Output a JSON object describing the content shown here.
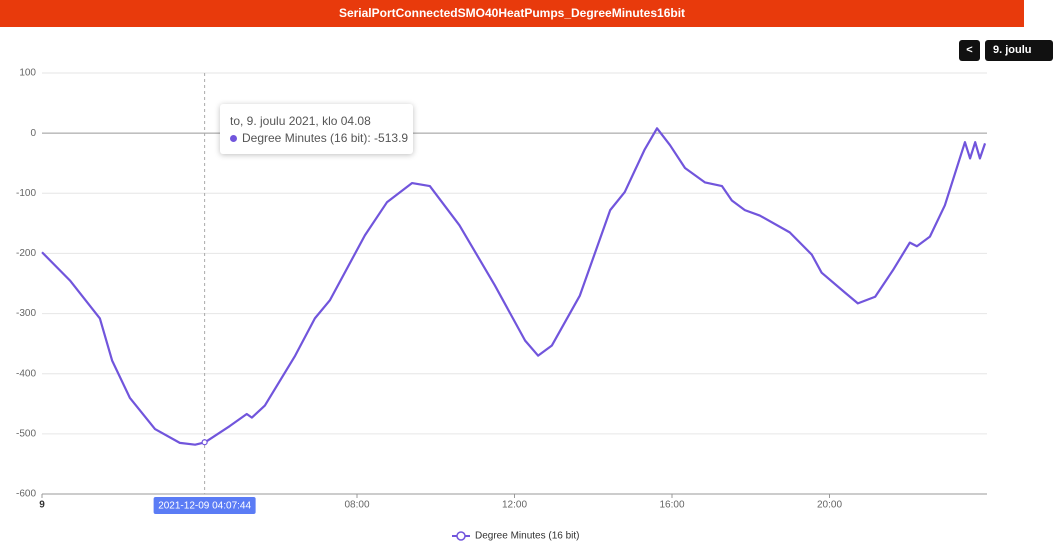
{
  "header": {
    "title": "SerialPortConnectedSMO40HeatPumps_DegreeMinutes16bit"
  },
  "controls": {
    "back": "<",
    "date": "9. joulu"
  },
  "chart_data": {
    "type": "line",
    "x": [
      0,
      0.71,
      1.47,
      1.78,
      2.23,
      2.87,
      3.5,
      3.89,
      4.14,
      4.77,
      5.2,
      5.33,
      5.66,
      6.43,
      6.93,
      7.31,
      8.2,
      8.76,
      9.4,
      9.85,
      10.6,
      11.5,
      12.27,
      12.6,
      12.95,
      13.66,
      14.43,
      14.8,
      15.3,
      15.62,
      15.95,
      16.33,
      16.84,
      17.27,
      17.52,
      17.85,
      18.23,
      18.99,
      19.55,
      19.8,
      20.39,
      20.72,
      21.16,
      21.61,
      22.04,
      22.22,
      22.55,
      22.93,
      23.44,
      23.57,
      23.7,
      23.82,
      23.95
    ],
    "series": [
      {
        "name": "Degree Minutes (16 bit)",
        "color": "#7155dc",
        "values": [
          -198,
          -245,
          -308,
          -378,
          -440,
          -492,
          -515,
          -518,
          -514,
          -487,
          -467,
          -473,
          -453,
          -370,
          -308,
          -278,
          -170,
          -115,
          -83,
          -88,
          -153,
          -253,
          -345,
          -370,
          -353,
          -270,
          -128,
          -98,
          -28,
          8,
          -20,
          -58,
          -82,
          -88,
          -112,
          -128,
          -137,
          -165,
          -202,
          -232,
          -265,
          -283,
          -272,
          -228,
          -182,
          -188,
          -172,
          -120,
          -15,
          -42,
          -15,
          -42,
          -17
        ]
      }
    ],
    "xlim": [
      0,
      24
    ],
    "xticks": [
      {
        "value": 0,
        "label": "9"
      },
      {
        "value": 8,
        "label": "08:00"
      },
      {
        "value": 12,
        "label": "12:00"
      },
      {
        "value": 16,
        "label": "16:00"
      },
      {
        "value": 20,
        "label": "20:00"
      }
    ],
    "ylim": [
      -600,
      100
    ],
    "yticks": [
      100,
      0,
      -100,
      -200,
      -300,
      -400,
      -500,
      -600
    ],
    "grid": true,
    "cursor": {
      "x": 4.13,
      "value": -513.9,
      "label": "2021-12-09 04:07:44"
    },
    "tooltip": {
      "title": "to, 9. joulu 2021, klo 04.08",
      "text": "Degree Minutes (16 bit): -513.9"
    }
  }
}
